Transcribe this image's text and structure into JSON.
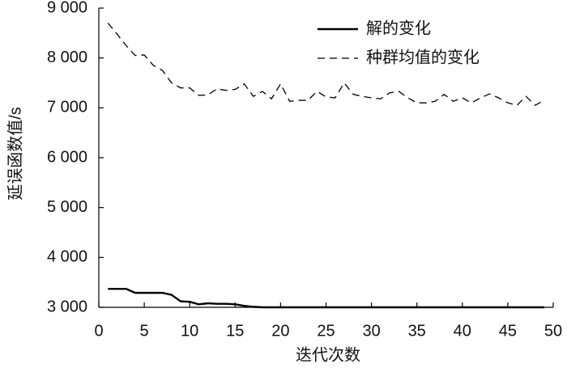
{
  "chart_data": {
    "type": "line",
    "x_label": "迭代次数",
    "y_label": "延误函数值/s",
    "x": [
      1,
      2,
      3,
      4,
      5,
      6,
      7,
      8,
      9,
      10,
      11,
      12,
      13,
      14,
      15,
      16,
      17,
      18,
      19,
      20,
      21,
      22,
      23,
      24,
      25,
      26,
      27,
      28,
      29,
      30,
      31,
      32,
      33,
      34,
      35,
      36,
      37,
      38,
      39,
      40,
      41,
      42,
      43,
      44,
      45,
      46,
      47,
      48,
      49
    ],
    "series": [
      {
        "name": "解的变化",
        "color": "#000000",
        "dash": "solid",
        "values": [
          3370,
          3370,
          3370,
          3290,
          3290,
          3290,
          3290,
          3250,
          3120,
          3110,
          3060,
          3080,
          3070,
          3070,
          3060,
          3030,
          3010,
          3000,
          3000,
          3000,
          3000,
          3000,
          3000,
          3000,
          3000,
          3000,
          3000,
          3000,
          3000,
          3000,
          3000,
          3000,
          3000,
          3000,
          3000,
          3000,
          3000,
          3000,
          3000,
          3000,
          3000,
          3000,
          3000,
          3000,
          3000,
          3000,
          3000,
          3000,
          3000
        ]
      },
      {
        "name": "种群均值的变化",
        "color": "#000000",
        "dash": "dashed",
        "values": [
          8700,
          8480,
          8250,
          8050,
          8060,
          7850,
          7750,
          7500,
          7400,
          7400,
          7250,
          7260,
          7380,
          7350,
          7370,
          7480,
          7230,
          7330,
          7180,
          7480,
          7130,
          7150,
          7150,
          7330,
          7220,
          7200,
          7500,
          7270,
          7230,
          7200,
          7180,
          7300,
          7330,
          7200,
          7100,
          7100,
          7130,
          7270,
          7130,
          7200,
          7100,
          7200,
          7280,
          7200,
          7100,
          7050,
          7230,
          7050,
          7150
        ]
      }
    ],
    "xlim": [
      0,
      50
    ],
    "xticks": [
      0,
      5,
      10,
      15,
      20,
      25,
      30,
      35,
      40,
      45,
      50
    ],
    "ylim": [
      3000,
      9000
    ],
    "yticks": [
      {
        "value": 3000,
        "label": "3 000"
      },
      {
        "value": 4000,
        "label": "4 000"
      },
      {
        "value": 5000,
        "label": "5 000"
      },
      {
        "value": 6000,
        "label": "6 000"
      },
      {
        "value": 7000,
        "label": "7 000"
      },
      {
        "value": 8000,
        "label": "8 000"
      },
      {
        "value": 9000,
        "label": "9 000"
      }
    ],
    "legend": "upper right"
  }
}
